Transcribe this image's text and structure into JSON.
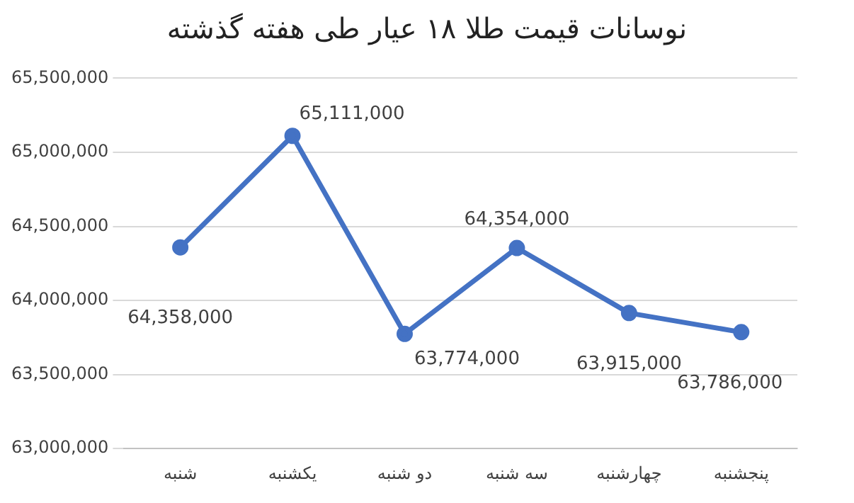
{
  "chart_data": {
    "type": "line",
    "title": "نوسانات قیمت طلا ۱۸ عیار طی هفته گذشته",
    "categories": [
      "شنبه",
      "یکشنبه",
      "دو شنبه",
      "سه شنبه",
      "چهارشنبه",
      "پنجشنبه"
    ],
    "series": [
      {
        "color": "#4472c4",
        "values": [
          64358000,
          65111000,
          63774000,
          64354000,
          63915000,
          63786000
        ],
        "value_labels": [
          "64,358,000",
          "65,111,000",
          "63,774,000",
          "64,354,000",
          "63,915,000",
          "63,786,000"
        ]
      }
    ],
    "ylim": [
      63000000,
      65500000
    ],
    "yticks": [
      {
        "value": 63000000,
        "label": "63,000,000"
      },
      {
        "value": 63500000,
        "label": "63,500,000"
      },
      {
        "value": 64000000,
        "label": "64,000,000"
      },
      {
        "value": 64500000,
        "label": "64,500,000"
      },
      {
        "value": 65000000,
        "label": "65,000,000"
      },
      {
        "value": 65500000,
        "label": "65,500,000"
      }
    ],
    "grid": "y",
    "marker": "circle",
    "line_style": "solid",
    "legend": false
  }
}
